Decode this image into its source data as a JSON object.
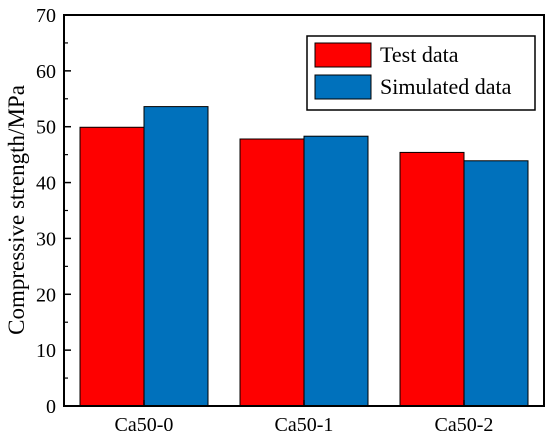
{
  "chart_data": {
    "type": "bar",
    "title": "",
    "xlabel": "",
    "ylabel": "Compressive strength/MPa",
    "categories": [
      "Ca50-0",
      "Ca50-1",
      "Ca50-2"
    ],
    "series": [
      {
        "name": "Test data",
        "values": [
          49.9,
          47.8,
          45.4
        ],
        "color": "#fe0000"
      },
      {
        "name": "Simulated data",
        "values": [
          53.6,
          48.3,
          43.9
        ],
        "color": "#0071bc"
      }
    ],
    "ylim": [
      0,
      70
    ],
    "yticks": [
      "0",
      "10",
      "20",
      "30",
      "40",
      "50",
      "60",
      "70"
    ],
    "grid": false,
    "legend_position": "top-right"
  }
}
